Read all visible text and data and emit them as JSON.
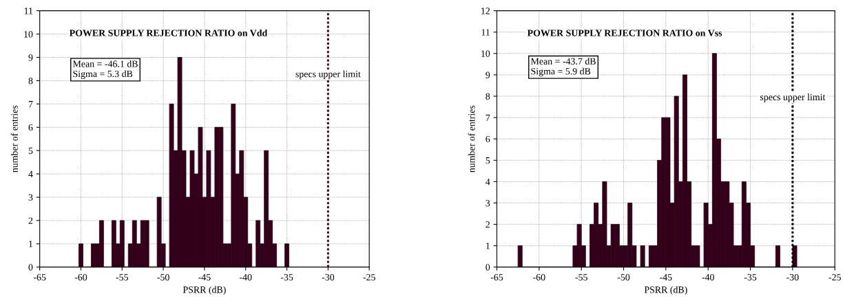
{
  "chart_data": [
    {
      "type": "histogram",
      "title": "POWER SUPPLY REJECTION RATIO on Vdd",
      "xlabel": "PSRR (dB)",
      "ylabel": "number of entries",
      "color": "#33001a",
      "bins": [
        -60.25,
        -59.75,
        -59.25,
        -58.75,
        -58.25,
        -57.75,
        -57.25,
        -56.75,
        -56.25,
        -55.75,
        -55.25,
        -54.75,
        -54.25,
        -53.75,
        -53.25,
        -52.75,
        -52.25,
        -51.75,
        -51.25,
        -50.75,
        -50.25,
        -49.75,
        -49.25,
        -48.75,
        -48.25,
        -47.75,
        -47.25,
        -46.75,
        -46.25,
        -45.75,
        -45.25,
        -44.75,
        -44.25,
        -43.75,
        -43.25,
        -42.75,
        -42.25,
        -41.75,
        -41.25,
        -40.75,
        -40.25,
        -39.75,
        -39.25,
        -38.75,
        -38.25,
        -37.75,
        -37.25,
        -36.75,
        -36.25,
        -35.75,
        -35.25,
        -34.75
      ],
      "values": [
        1,
        0,
        0,
        1,
        1,
        2,
        0,
        0,
        2,
        1,
        2,
        0,
        1,
        2,
        1,
        2,
        2,
        0,
        0,
        3,
        1,
        0,
        7,
        5,
        9,
        5,
        3,
        5,
        4,
        6,
        3,
        5,
        3,
        6,
        6,
        1,
        1,
        7,
        4,
        5,
        3,
        1,
        0,
        2,
        1,
        5,
        2,
        1,
        0,
        0,
        1
      ],
      "xlim": [
        -65,
        -25
      ],
      "xticks": [
        -65,
        -60,
        -55,
        -50,
        -45,
        -40,
        -35,
        -30,
        -25
      ],
      "ylim": [
        0,
        11
      ],
      "yticks": [
        0,
        1,
        2,
        3,
        4,
        5,
        6,
        7,
        8,
        9,
        10,
        11
      ],
      "grid": true,
      "ref_lines": [
        {
          "axis": "x",
          "value": -30,
          "label": "specs upper limit",
          "color": "#4d0a1a",
          "line_style": "dotted"
        }
      ],
      "annotations": [
        "Mean = -46.1 dB\nSigma = 5.3 dB"
      ]
    },
    {
      "type": "histogram",
      "title": "POWER SUPPLY REJECTION RATIO on Vss",
      "xlabel": "PSRR (dB)",
      "ylabel": "number of entries",
      "color": "#33001a",
      "bins": [
        -62.5,
        -62,
        -61.5,
        -61,
        -60.5,
        -60,
        -59.5,
        -59,
        -58.5,
        -58,
        -57.5,
        -57,
        -56.5,
        -56,
        -55.5,
        -55,
        -54.5,
        -54,
        -53.5,
        -53,
        -52.5,
        -52,
        -51.5,
        -51,
        -50.5,
        -50,
        -49.5,
        -49,
        -48.5,
        -48,
        -47.5,
        -47,
        -46.5,
        -46,
        -45.5,
        -45,
        -44.5,
        -44,
        -43.5,
        -43,
        -42.5,
        -42,
        -41.5,
        -41,
        -40.5,
        -40,
        -39.5,
        -39,
        -38.5,
        -38,
        -37.5,
        -37,
        -36.5,
        -36,
        -35.5,
        -35,
        -34.5,
        -34,
        -33.5,
        -33,
        -32.5,
        -32,
        -31.5,
        -31,
        -30.5,
        -30,
        -29.5
      ],
      "values": [
        1,
        0,
        0,
        0,
        0,
        0,
        0,
        0,
        0,
        0,
        0,
        0,
        0,
        1,
        2,
        1,
        0,
        2,
        3,
        2,
        4,
        1,
        2,
        2,
        1,
        1,
        3,
        1,
        0,
        1,
        0,
        1,
        1,
        5,
        7,
        7,
        3,
        8,
        4,
        9,
        4,
        1,
        1,
        0,
        3,
        2,
        10,
        6,
        4,
        4,
        3,
        1,
        1,
        4,
        3,
        1,
        0,
        0,
        0,
        0,
        0,
        1,
        0,
        0,
        0,
        1
      ],
      "xlim": [
        -65,
        -25
      ],
      "xticks": [
        -65,
        -60,
        -55,
        -50,
        -45,
        -40,
        -35,
        -30,
        -25
      ],
      "ylim": [
        0,
        12
      ],
      "yticks": [
        0,
        1,
        2,
        3,
        4,
        5,
        6,
        7,
        8,
        9,
        10,
        11,
        12
      ],
      "grid": true,
      "ref_lines": [
        {
          "axis": "x",
          "value": -30,
          "label": "specs upper limit",
          "color": "#000000",
          "line_style": "dotted"
        }
      ],
      "annotations": [
        "Mean = -43.7 dB\nSigma = 5.9 dB"
      ]
    }
  ]
}
